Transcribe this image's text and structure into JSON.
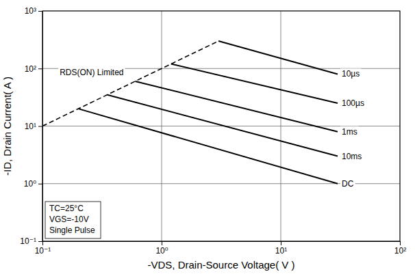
{
  "chart_data": {
    "type": "line",
    "xlabel": "-VDS, Drain-Source Voltage( V )",
    "ylabel": "-ID, Drain Current( A )",
    "log": true,
    "grid": true,
    "color": "#000000",
    "xlim": [
      0.1,
      100
    ],
    "ylim": [
      0.1,
      1000
    ],
    "xticks": [
      {
        "value": 0.1,
        "label": "10⁻¹"
      },
      {
        "value": 1,
        "label": "10⁰"
      },
      {
        "value": 10,
        "label": "10¹"
      },
      {
        "value": 100,
        "label": "10²"
      }
    ],
    "yticks": [
      {
        "value": 0.1,
        "label": "10⁻¹"
      },
      {
        "value": 1,
        "label": "10⁰"
      },
      {
        "value": 10,
        "label": "10¹"
      },
      {
        "value": 100,
        "label": "10²"
      },
      {
        "value": 1000,
        "label": "10³"
      }
    ],
    "series": [
      {
        "name": "RDS(ON) Limited",
        "line_style": "dashed",
        "x": [
          0.1,
          3
        ],
        "values": [
          10,
          300
        ]
      },
      {
        "name": "10µs",
        "line_style": "solid",
        "x": [
          3,
          30
        ],
        "values": [
          300,
          80
        ]
      },
      {
        "name": "100µs",
        "line_style": "solid",
        "x": [
          1.2,
          30
        ],
        "values": [
          120,
          25
        ]
      },
      {
        "name": "1ms",
        "line_style": "solid",
        "x": [
          0.6,
          30
        ],
        "values": [
          60,
          8
        ]
      },
      {
        "name": "10ms",
        "line_style": "solid",
        "x": [
          0.35,
          30
        ],
        "values": [
          35,
          3
        ]
      },
      {
        "name": "DC",
        "line_style": "solid",
        "x": [
          0.2,
          30
        ],
        "values": [
          20,
          1
        ]
      }
    ],
    "annotations": [
      "TC=25°C",
      "VGS=-10V",
      "Single Pulse"
    ]
  }
}
